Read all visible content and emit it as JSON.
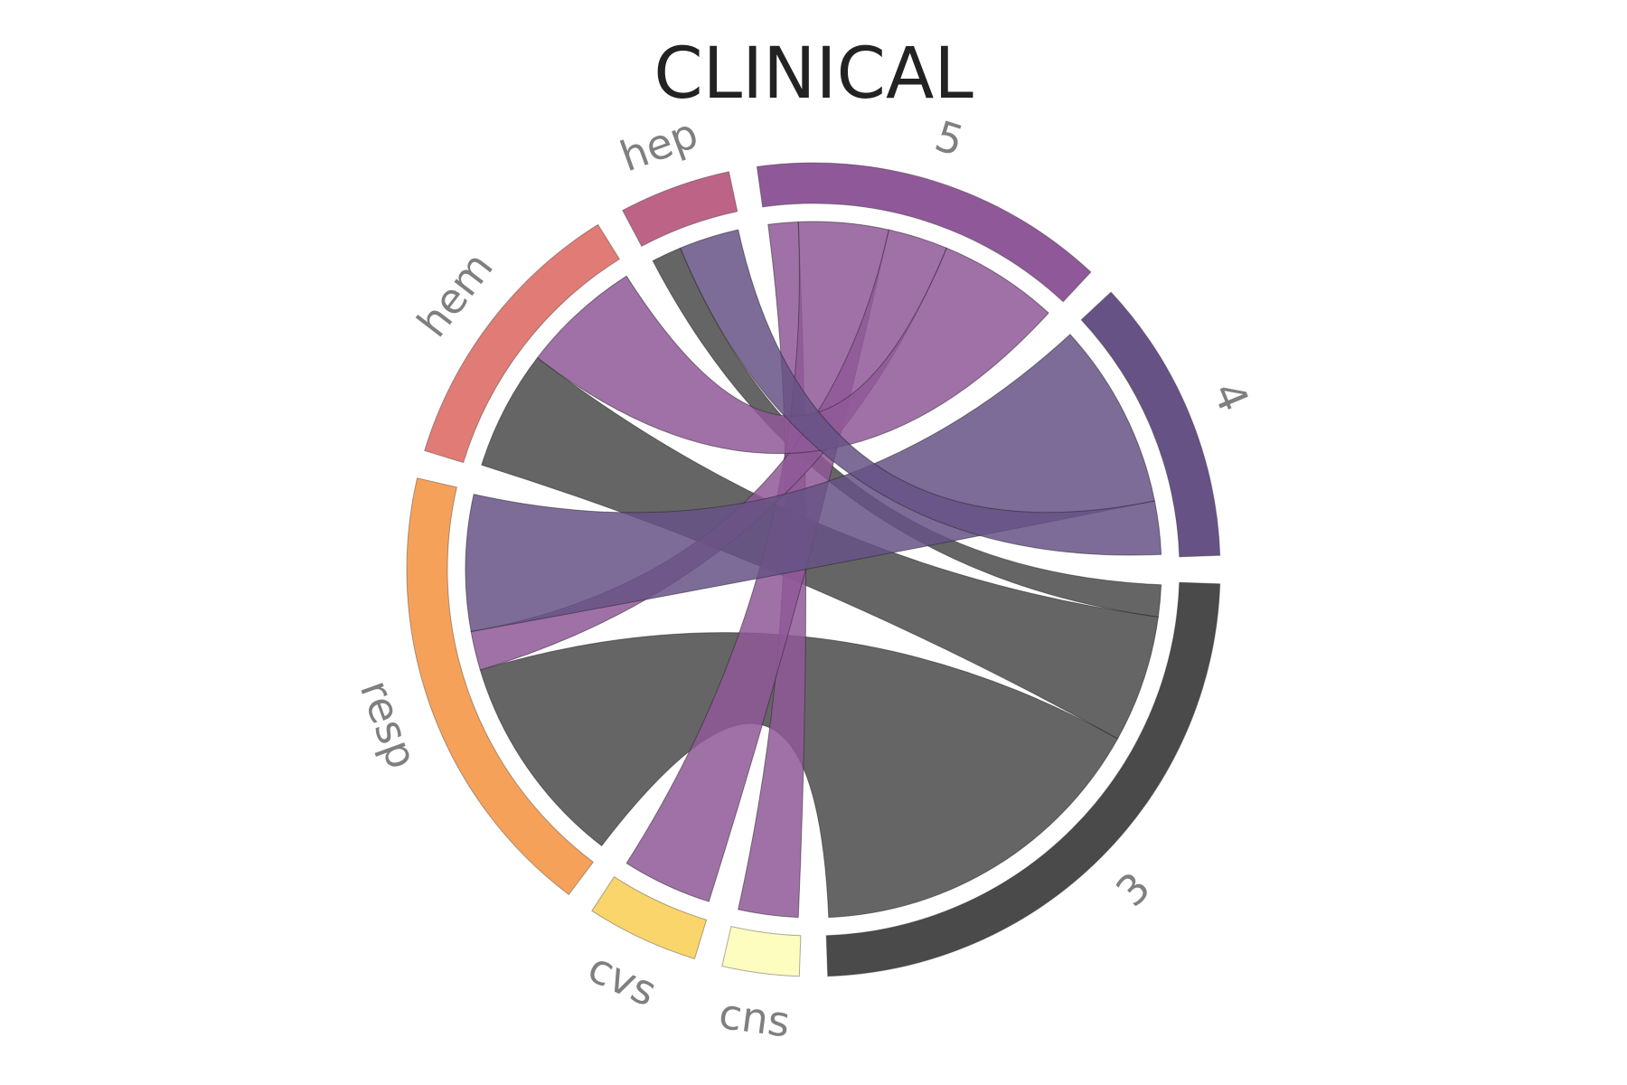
{
  "chart_data": {
    "type": "chord",
    "title": "CLINICAL",
    "groups": [
      {
        "name": "3",
        "color": "#4a4a4a",
        "side": "top"
      },
      {
        "name": "cns",
        "color": "#fcfdbf",
        "side": "bottom"
      },
      {
        "name": "cvs",
        "color": "#f9d56b",
        "side": "bottom"
      },
      {
        "name": "resp",
        "color": "#f6a15a",
        "side": "bottom"
      },
      {
        "name": "hem",
        "color": "#e17b76",
        "side": "bottom"
      },
      {
        "name": "hep",
        "color": "#bd6486",
        "side": "bottom"
      },
      {
        "name": "5",
        "color": "#8f5898",
        "side": "top"
      },
      {
        "name": "4",
        "color": "#665285",
        "side": "top"
      }
    ],
    "arc_spans_deg": {
      "3": 90,
      "cns": 15,
      "cvs": 20,
      "resp": 70,
      "hem": 45,
      "hep": 20,
      "5": 55,
      "4": 45
    },
    "links": [
      {
        "source": "3",
        "target": "hep",
        "value": 5
      },
      {
        "source": "3",
        "target": "hem",
        "value": 20
      },
      {
        "source": "3",
        "target": "resp",
        "value": 55
      },
      {
        "source": "5",
        "target": "cns",
        "value": 5
      },
      {
        "source": "5",
        "target": "cvs",
        "value": 15
      },
      {
        "source": "5",
        "target": "resp",
        "value": 10
      },
      {
        "source": "5",
        "target": "hem",
        "value": 20
      },
      {
        "source": "4",
        "target": "resp",
        "value": 35
      },
      {
        "source": "4",
        "target": "hep",
        "value": 10
      }
    ],
    "legend": "none",
    "grid": false
  }
}
